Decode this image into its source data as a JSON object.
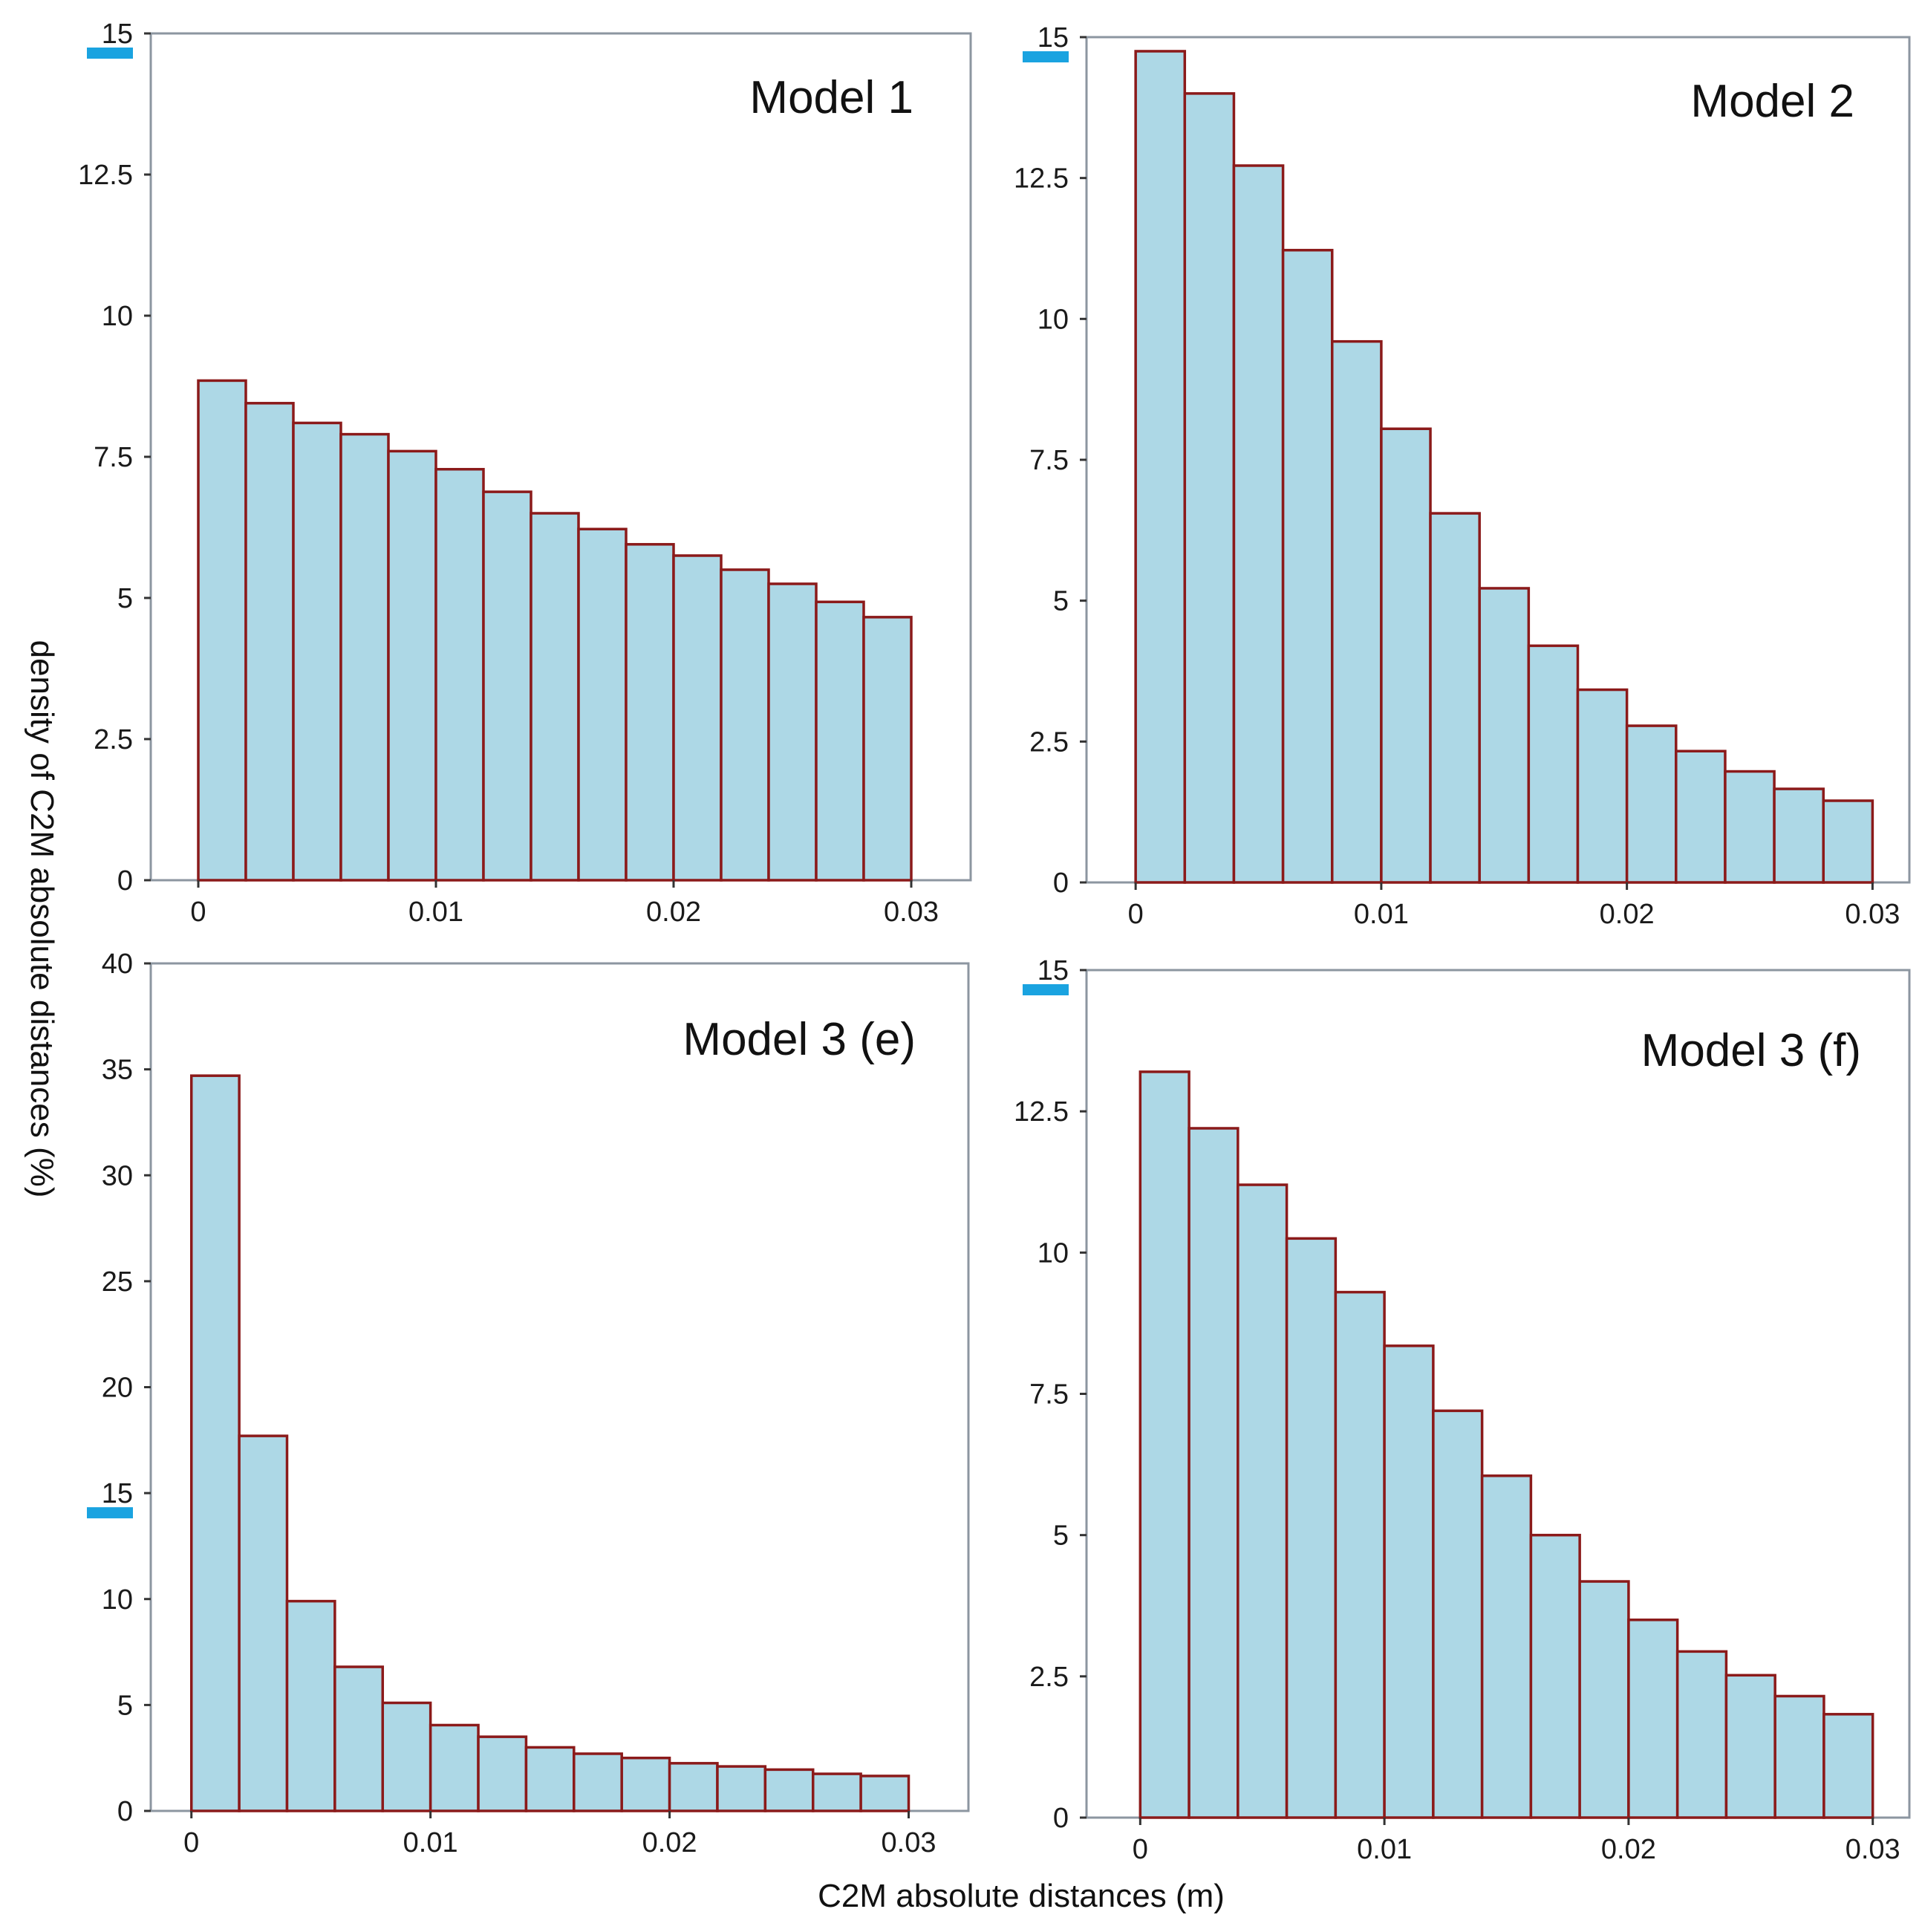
{
  "figure": {
    "xlabel": "C2M absolute distances (m)",
    "ylabel": "density of C2M absolute distances (%)"
  },
  "colors": {
    "bar_fill": "#add8e6",
    "bar_edge": "#8b1a1a",
    "frame": "#8c96a0",
    "highlight": "#1aa3e0"
  },
  "chart_data": [
    {
      "type": "bar",
      "title": "Model 1",
      "x_range": [
        -0.002,
        0.0325
      ],
      "xticks": [
        0,
        0.01,
        0.02,
        0.03
      ],
      "xtick_labels": [
        "0",
        "0.01",
        "0.02",
        "0.03"
      ],
      "ylim": [
        0,
        15
      ],
      "yticks": [
        0,
        2.5,
        5,
        7.5,
        10,
        12.5,
        15
      ],
      "ytick_labels": [
        "0",
        "2.5",
        "5",
        "7.5",
        "10",
        "12.5",
        "15"
      ],
      "highlight_tick": "15",
      "bin_width": 0.002,
      "bin_starts": [
        0,
        0.002,
        0.004,
        0.006,
        0.008,
        0.01,
        0.012,
        0.014,
        0.016,
        0.018,
        0.02,
        0.022,
        0.024,
        0.026,
        0.028
      ],
      "values": [
        8.85,
        8.45,
        8.1,
        7.9,
        7.6,
        7.28,
        6.88,
        6.5,
        6.22,
        5.95,
        5.75,
        5.5,
        5.25,
        4.93,
        4.66
      ]
    },
    {
      "type": "bar",
      "title": "Model 2",
      "x_range": [
        -0.002,
        0.0315
      ],
      "xticks": [
        0,
        0.01,
        0.02,
        0.03
      ],
      "xtick_labels": [
        "0",
        "0.01",
        "0.02",
        "0.03"
      ],
      "ylim": [
        0,
        15
      ],
      "yticks": [
        0,
        2.5,
        5,
        7.5,
        10,
        12.5,
        15
      ],
      "ytick_labels": [
        "0",
        "2.5",
        "5",
        "7.5",
        "10",
        "12.5",
        "15"
      ],
      "highlight_tick": "15",
      "bin_width": 0.002,
      "bin_starts": [
        0,
        0.002,
        0.004,
        0.006,
        0.008,
        0.01,
        0.012,
        0.014,
        0.016,
        0.018,
        0.02,
        0.022,
        0.024,
        0.026,
        0.028
      ],
      "values": [
        14.75,
        14.0,
        12.72,
        11.22,
        9.6,
        8.05,
        6.55,
        5.22,
        4.2,
        3.42,
        2.78,
        2.33,
        1.97,
        1.66,
        1.45
      ]
    },
    {
      "type": "bar",
      "title": "Model 3 (e)",
      "x_range": [
        -0.0017,
        0.0325
      ],
      "xticks": [
        0,
        0.01,
        0.02,
        0.03
      ],
      "xtick_labels": [
        "0",
        "0.01",
        "0.02",
        "0.03"
      ],
      "ylim": [
        0,
        40
      ],
      "yticks": [
        0,
        5,
        10,
        15,
        20,
        25,
        30,
        35,
        40
      ],
      "ytick_labels": [
        "0",
        "5",
        "10",
        "15",
        "20",
        "25",
        "30",
        "35",
        "40"
      ],
      "highlight_tick": "15",
      "bin_width": 0.002,
      "bin_starts": [
        0,
        0.002,
        0.004,
        0.006,
        0.008,
        0.01,
        0.012,
        0.014,
        0.016,
        0.018,
        0.02,
        0.022,
        0.024,
        0.026,
        0.028
      ],
      "values": [
        34.7,
        17.7,
        9.9,
        6.8,
        5.1,
        4.05,
        3.5,
        3.0,
        2.7,
        2.5,
        2.25,
        2.1,
        1.95,
        1.75,
        1.65
      ]
    },
    {
      "type": "bar",
      "title": "Model 3 (f)",
      "x_range": [
        -0.0022,
        0.0315
      ],
      "xticks": [
        0,
        0.01,
        0.02,
        0.03
      ],
      "xtick_labels": [
        "0",
        "0.01",
        "0.02",
        "0.03"
      ],
      "ylim": [
        0,
        15
      ],
      "yticks": [
        0,
        2.5,
        5,
        7.5,
        10,
        12.5,
        15
      ],
      "ytick_labels": [
        "0",
        "2.5",
        "5",
        "7.5",
        "10",
        "12.5",
        "15"
      ],
      "highlight_tick": "15",
      "bin_width": 0.002,
      "bin_starts": [
        0,
        0.002,
        0.004,
        0.006,
        0.008,
        0.01,
        0.012,
        0.014,
        0.016,
        0.018,
        0.02,
        0.022,
        0.024,
        0.026,
        0.028
      ],
      "values": [
        13.2,
        12.2,
        11.2,
        10.25,
        9.3,
        8.35,
        7.2,
        6.05,
        5.0,
        4.18,
        3.5,
        2.94,
        2.52,
        2.15,
        1.83
      ]
    }
  ]
}
